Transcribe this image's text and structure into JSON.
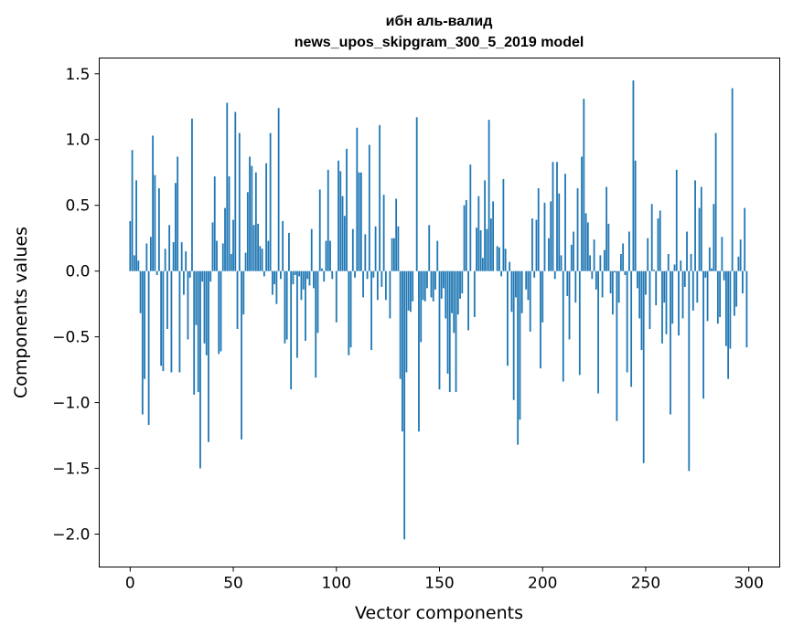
{
  "chart_data": {
    "type": "bar",
    "title_lines": [
      "ибн аль-валид",
      "news_upos_skipgram_300_5_2019 model"
    ],
    "xlabel": "Vector components",
    "ylabel": "Components values",
    "xlim": [
      -15,
      315
    ],
    "ylim": [
      -2.25,
      1.62
    ],
    "xticks": [
      0,
      50,
      100,
      150,
      200,
      250,
      300
    ],
    "yticks": [
      -2.0,
      -1.5,
      -1.0,
      -0.5,
      0.0,
      0.5,
      1.0,
      1.5
    ],
    "ytick_labels": [
      "−2.0",
      "−1.5",
      "−1.0",
      "−0.5",
      "0.0",
      "0.5",
      "1.0",
      "1.5"
    ],
    "bar_color": "#1f77b4",
    "grid": false,
    "values": [
      0.38,
      0.92,
      0.12,
      0.69,
      0.08,
      -0.32,
      -1.09,
      -0.82,
      0.21,
      -1.17,
      0.26,
      1.03,
      0.73,
      -0.03,
      0.63,
      -0.72,
      -0.76,
      0.17,
      -0.44,
      0.35,
      -0.77,
      0.22,
      0.67,
      0.87,
      -0.77,
      0.22,
      -0.18,
      0.15,
      -0.52,
      -0.05,
      1.16,
      -0.94,
      -0.41,
      -0.92,
      -1.5,
      -0.08,
      -0.55,
      -0.64,
      -1.3,
      -0.08,
      0.37,
      0.72,
      0.23,
      -0.63,
      -0.61,
      0.21,
      0.48,
      1.28,
      0.72,
      0.13,
      0.39,
      1.21,
      -0.44,
      1.05,
      -1.28,
      -0.33,
      0.14,
      0.6,
      0.87,
      0.8,
      0.35,
      0.75,
      0.36,
      0.19,
      0.17,
      -0.04,
      0.82,
      0.23,
      1.05,
      -0.18,
      -0.1,
      -0.25,
      1.24,
      -0.06,
      0.38,
      -0.55,
      -0.52,
      0.29,
      -0.9,
      -0.1,
      -0.03,
      -0.66,
      -0.04,
      -0.22,
      -0.14,
      -0.53,
      -0.06,
      -0.11,
      0.32,
      -0.13,
      -0.81,
      -0.47,
      0.62,
      0.02,
      -0.08,
      0.23,
      0.77,
      0.23,
      -0.06,
      0.0,
      -0.39,
      0.84,
      0.76,
      0.57,
      0.42,
      0.93,
      -0.64,
      -0.58,
      0.32,
      -0.05,
      1.09,
      0.75,
      0.75,
      -0.2,
      0.28,
      -0.06,
      0.96,
      -0.6,
      -0.05,
      0.34,
      -0.22,
      1.11,
      -0.12,
      0.58,
      -0.22,
      0.0,
      -0.36,
      0.25,
      0.25,
      0.55,
      0.34,
      -0.82,
      -1.22,
      -2.04,
      -0.77,
      -0.3,
      -0.31,
      -0.23,
      0.0,
      1.17,
      -1.22,
      -0.54,
      -0.22,
      -0.23,
      -0.13,
      0.35,
      -0.2,
      -0.23,
      -0.14,
      0.23,
      -0.9,
      -0.21,
      -0.13,
      -0.36,
      -0.78,
      -0.92,
      -0.32,
      -0.47,
      -0.92,
      -0.33,
      -0.21,
      -0.17,
      0.5,
      0.54,
      -0.45,
      0.81,
      0.0,
      -0.35,
      0.33,
      0.57,
      0.31,
      0.1,
      0.69,
      0.32,
      1.15,
      0.4,
      0.53,
      0.0,
      0.19,
      0.18,
      -0.04,
      0.7,
      0.17,
      -0.72,
      0.07,
      -0.31,
      -0.98,
      -0.2,
      -1.32,
      -1.13,
      -0.32,
      0.0,
      -0.14,
      -0.22,
      -0.46,
      0.4,
      -0.05,
      0.39,
      0.63,
      -0.74,
      -0.39,
      0.52,
      0.0,
      0.25,
      0.53,
      0.83,
      -0.06,
      0.83,
      0.59,
      0.12,
      -0.84,
      0.74,
      -0.19,
      -0.52,
      0.2,
      0.3,
      -0.24,
      0.63,
      -0.79,
      0.87,
      1.31,
      0.44,
      0.37,
      0.12,
      -0.06,
      0.24,
      -0.14,
      -0.93,
      0.12,
      -0.2,
      0.16,
      0.64,
      0.36,
      -0.17,
      -0.33,
      -0.01,
      -1.14,
      -0.24,
      0.13,
      0.21,
      -0.03,
      -0.77,
      0.3,
      -0.88,
      1.45,
      0.84,
      -0.13,
      -0.36,
      -0.6,
      -1.46,
      -0.18,
      0.25,
      -0.44,
      0.51,
      0.01,
      -0.26,
      0.4,
      0.46,
      -0.55,
      -0.24,
      -0.48,
      0.13,
      -1.09,
      -0.4,
      0.05,
      0.77,
      -0.49,
      0.08,
      -0.36,
      -0.12,
      0.3,
      -1.52,
      0.13,
      -0.3,
      0.69,
      -0.24,
      0.48,
      0.64,
      -0.97,
      -0.05,
      -0.38,
      0.18,
      0.02,
      0.51,
      1.05,
      -0.4,
      -0.35,
      0.26,
      -0.07,
      -0.57,
      -0.82,
      -0.59,
      1.39,
      -0.34,
      -0.27,
      0.11,
      0.24,
      -0.17,
      0.48,
      -0.58
    ]
  }
}
